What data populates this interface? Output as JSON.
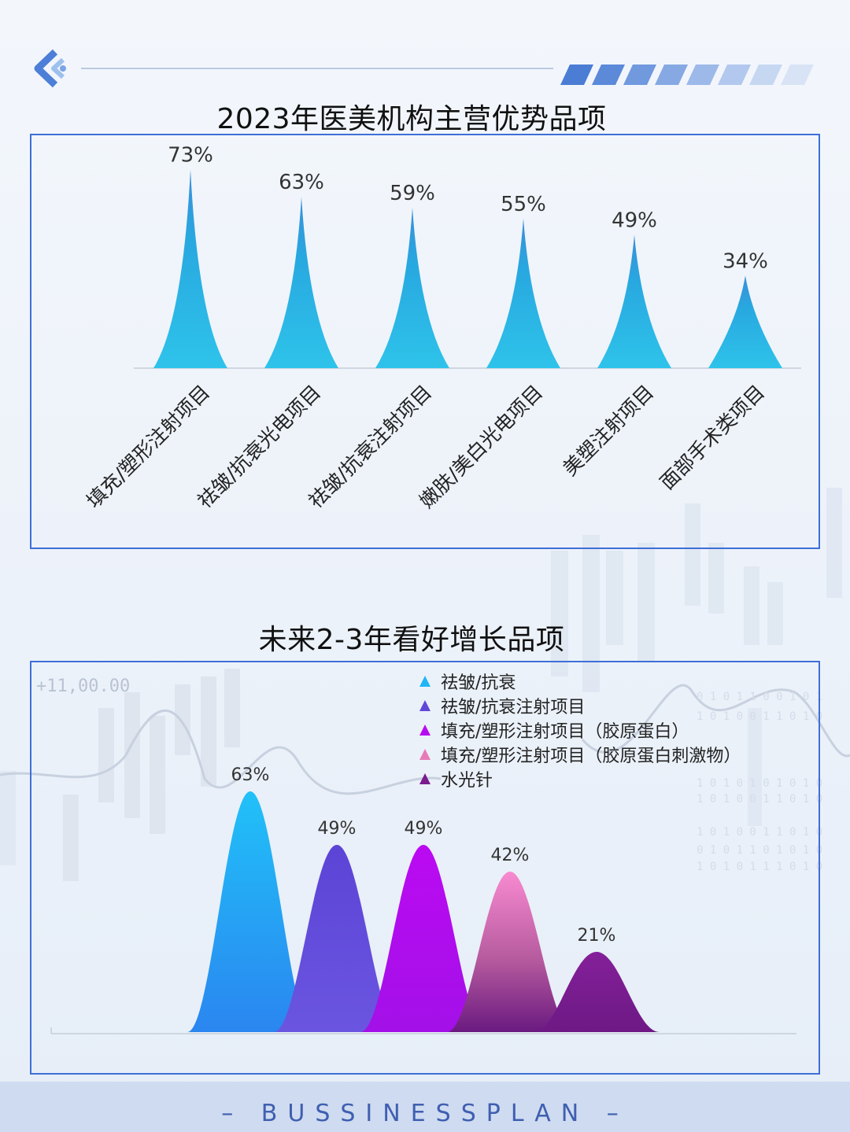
{
  "chart1_title": "2023年医美机构主营优势品项",
  "chart2_title": "未来2-3年看好增长品项",
  "footer": "BUSSINESSPLAN",
  "ticker": "+11,00.00",
  "colors": {
    "panel_border": "#3d6fd6",
    "peak_chart1": "#2ab0e2",
    "series": [
      "#1fb6f5",
      "#6248d8",
      "#b60df0",
      "#e77ab8",
      "#7a1b8e"
    ]
  },
  "chart_data": [
    {
      "type": "area",
      "title": "2023年医美机构主营优势品项",
      "categories": [
        "填充/塑形注射项目",
        "祛皱/抗衰光电项目",
        "祛皱/抗衰注射项目",
        "嫩肤/美白光电项目",
        "美塑注射项目",
        "面部手术类项目"
      ],
      "values": [
        73,
        63,
        59,
        55,
        49,
        34
      ],
      "data_labels": [
        "73%",
        "63%",
        "59%",
        "55%",
        "49%",
        "34%"
      ],
      "ylim": [
        0,
        80
      ],
      "grid": false
    },
    {
      "type": "area",
      "title": "未来2-3年看好增长品项",
      "legend_position": "top",
      "series": [
        {
          "name": "祛皱/抗衰",
          "value": 63,
          "label": "63%"
        },
        {
          "name": "祛皱/抗衰注射项目",
          "value": 49,
          "label": "49%"
        },
        {
          "name": "填充/塑形注射项目（胶原蛋白）",
          "value": 49,
          "label": "49%"
        },
        {
          "name": "填充/塑形注射项目（胶原蛋白刺激物）",
          "value": 42,
          "label": "42%"
        },
        {
          "name": "水光针",
          "value": 21,
          "label": "21%"
        }
      ],
      "ylim": [
        0,
        70
      ],
      "grid": false
    }
  ]
}
